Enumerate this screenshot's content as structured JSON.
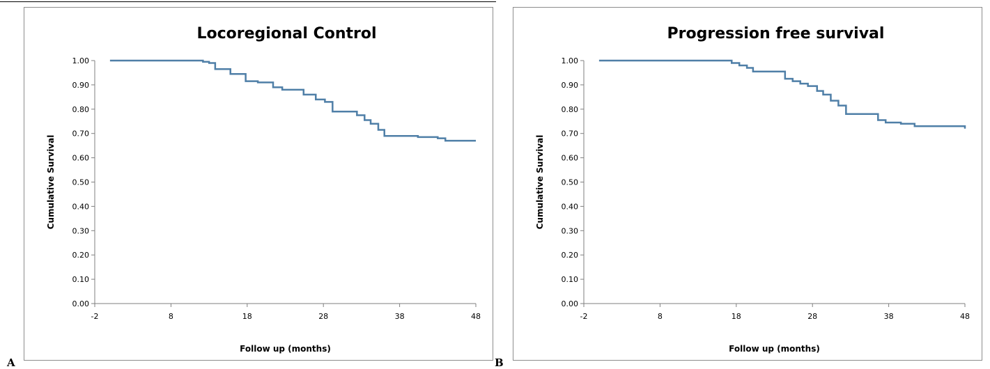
{
  "panels": [
    {
      "letter": "A"
    },
    {
      "letter": "B"
    }
  ],
  "chart_data": [
    {
      "type": "line",
      "title": "Locoregional Control",
      "xlabel": "Follow up (months)",
      "ylabel": "Cumulative Survival",
      "xlim": [
        -2,
        48
      ],
      "ylim": [
        0,
        1
      ],
      "xticks": [
        -2,
        8,
        18,
        28,
        38,
        48
      ],
      "xtick_labels": [
        "-2",
        "8",
        "18",
        "28",
        "38",
        "48"
      ],
      "yticks": [
        0,
        0.1,
        0.2,
        0.3,
        0.4,
        0.5,
        0.6,
        0.7,
        0.8,
        0.9,
        1.0
      ],
      "ytick_labels": [
        "0.00",
        "0.10",
        "0.20",
        "0.30",
        "0.40",
        "0.50",
        "0.60",
        "0.70",
        "0.80",
        "0.90",
        "1.00"
      ],
      "grid": false,
      "line_color": "#4f7fa7",
      "series": [
        {
          "step": true,
          "x": [
            0,
            12.2,
            13.0,
            13.8,
            15.8,
            17.8,
            19.4,
            21.4,
            22.6,
            25.4,
            27.0,
            28.2,
            29.2,
            32.4,
            33.4,
            34.2,
            35.2,
            36.0,
            40.4,
            43.0,
            44.0,
            48.0
          ],
          "y": [
            1.0,
            0.995,
            0.99,
            0.965,
            0.945,
            0.915,
            0.91,
            0.89,
            0.88,
            0.86,
            0.84,
            0.83,
            0.79,
            0.775,
            0.755,
            0.74,
            0.715,
            0.69,
            0.685,
            0.68,
            0.67,
            0.67
          ]
        }
      ]
    },
    {
      "type": "line",
      "title": "Progression free survival",
      "xlabel": "Follow up (months)",
      "ylabel": "Cumulative Survival",
      "xlim": [
        -2,
        48
      ],
      "ylim": [
        0,
        1
      ],
      "xticks": [
        -2,
        8,
        18,
        28,
        38,
        48
      ],
      "xtick_labels": [
        "-2",
        "8",
        "18",
        "28",
        "38",
        "48"
      ],
      "yticks": [
        0,
        0.1,
        0.2,
        0.3,
        0.4,
        0.5,
        0.6,
        0.7,
        0.8,
        0.9,
        1.0
      ],
      "ytick_labels": [
        "0.00",
        "0.10",
        "0.20",
        "0.30",
        "0.40",
        "0.50",
        "0.60",
        "0.70",
        "0.80",
        "0.90",
        "1.00"
      ],
      "grid": false,
      "line_color": "#4f7fa7",
      "series": [
        {
          "step": true,
          "x": [
            0,
            17.4,
            18.4,
            19.4,
            20.2,
            22.2,
            24.4,
            25.4,
            26.4,
            27.4,
            28.6,
            29.4,
            30.4,
            31.4,
            32.4,
            36.6,
            37.6,
            39.6,
            41.4,
            47.8,
            48.0
          ],
          "y": [
            1.0,
            0.99,
            0.98,
            0.97,
            0.955,
            0.955,
            0.925,
            0.915,
            0.905,
            0.895,
            0.875,
            0.86,
            0.835,
            0.815,
            0.78,
            0.755,
            0.745,
            0.74,
            0.73,
            0.73,
            0.72
          ]
        }
      ]
    }
  ]
}
